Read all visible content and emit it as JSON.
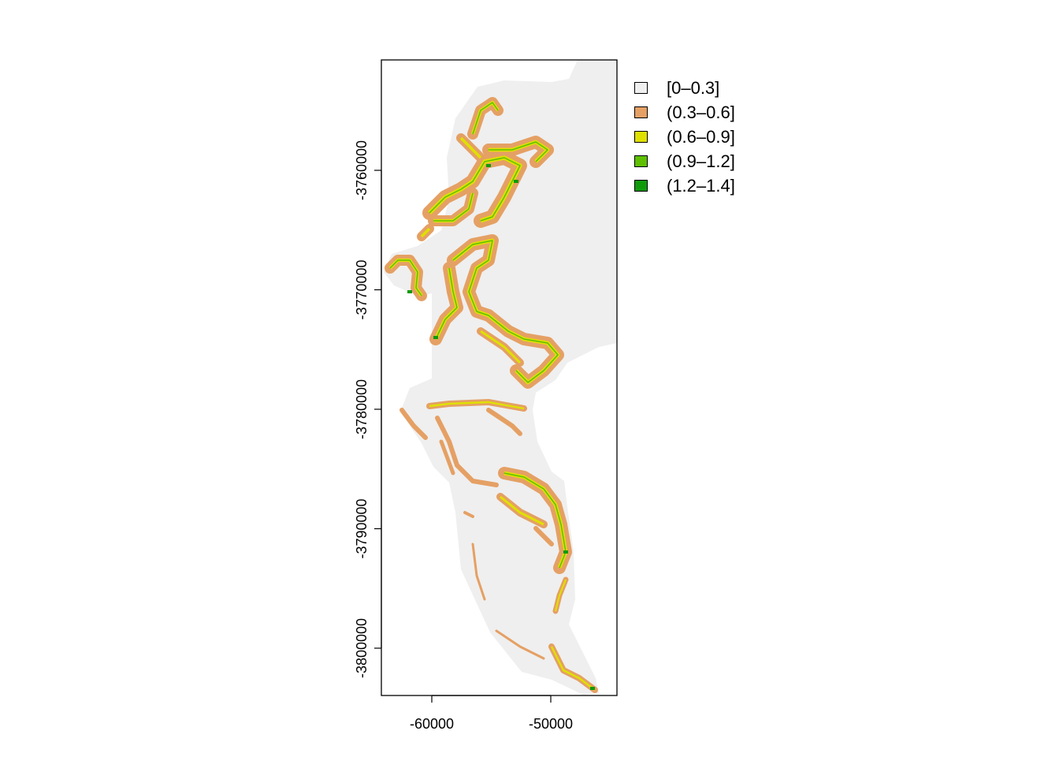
{
  "chart_data": {
    "type": "raster-map",
    "x_ticks": [
      "-60000",
      "-50000"
    ],
    "x_tick_values": [
      -60000,
      -50000
    ],
    "y_ticks": [
      "-3760000",
      "-3770000",
      "-3780000",
      "-3790000",
      "-3800000"
    ],
    "y_tick_values": [
      -3760000,
      -3770000,
      -3780000,
      -3790000,
      -3800000
    ],
    "legend": [
      {
        "label": "[0–0.3]",
        "color": "#efefef"
      },
      {
        "label": "(0.3–0.6]",
        "color": "#e5a064"
      },
      {
        "label": "(0.6–0.9]",
        "color": "#dfe000"
      },
      {
        "label": "(0.9–1.2]",
        "color": "#5ec000"
      },
      {
        "label": "(1.2–1.4]",
        "color": "#0f9a0a"
      }
    ],
    "legend_position": "right"
  }
}
